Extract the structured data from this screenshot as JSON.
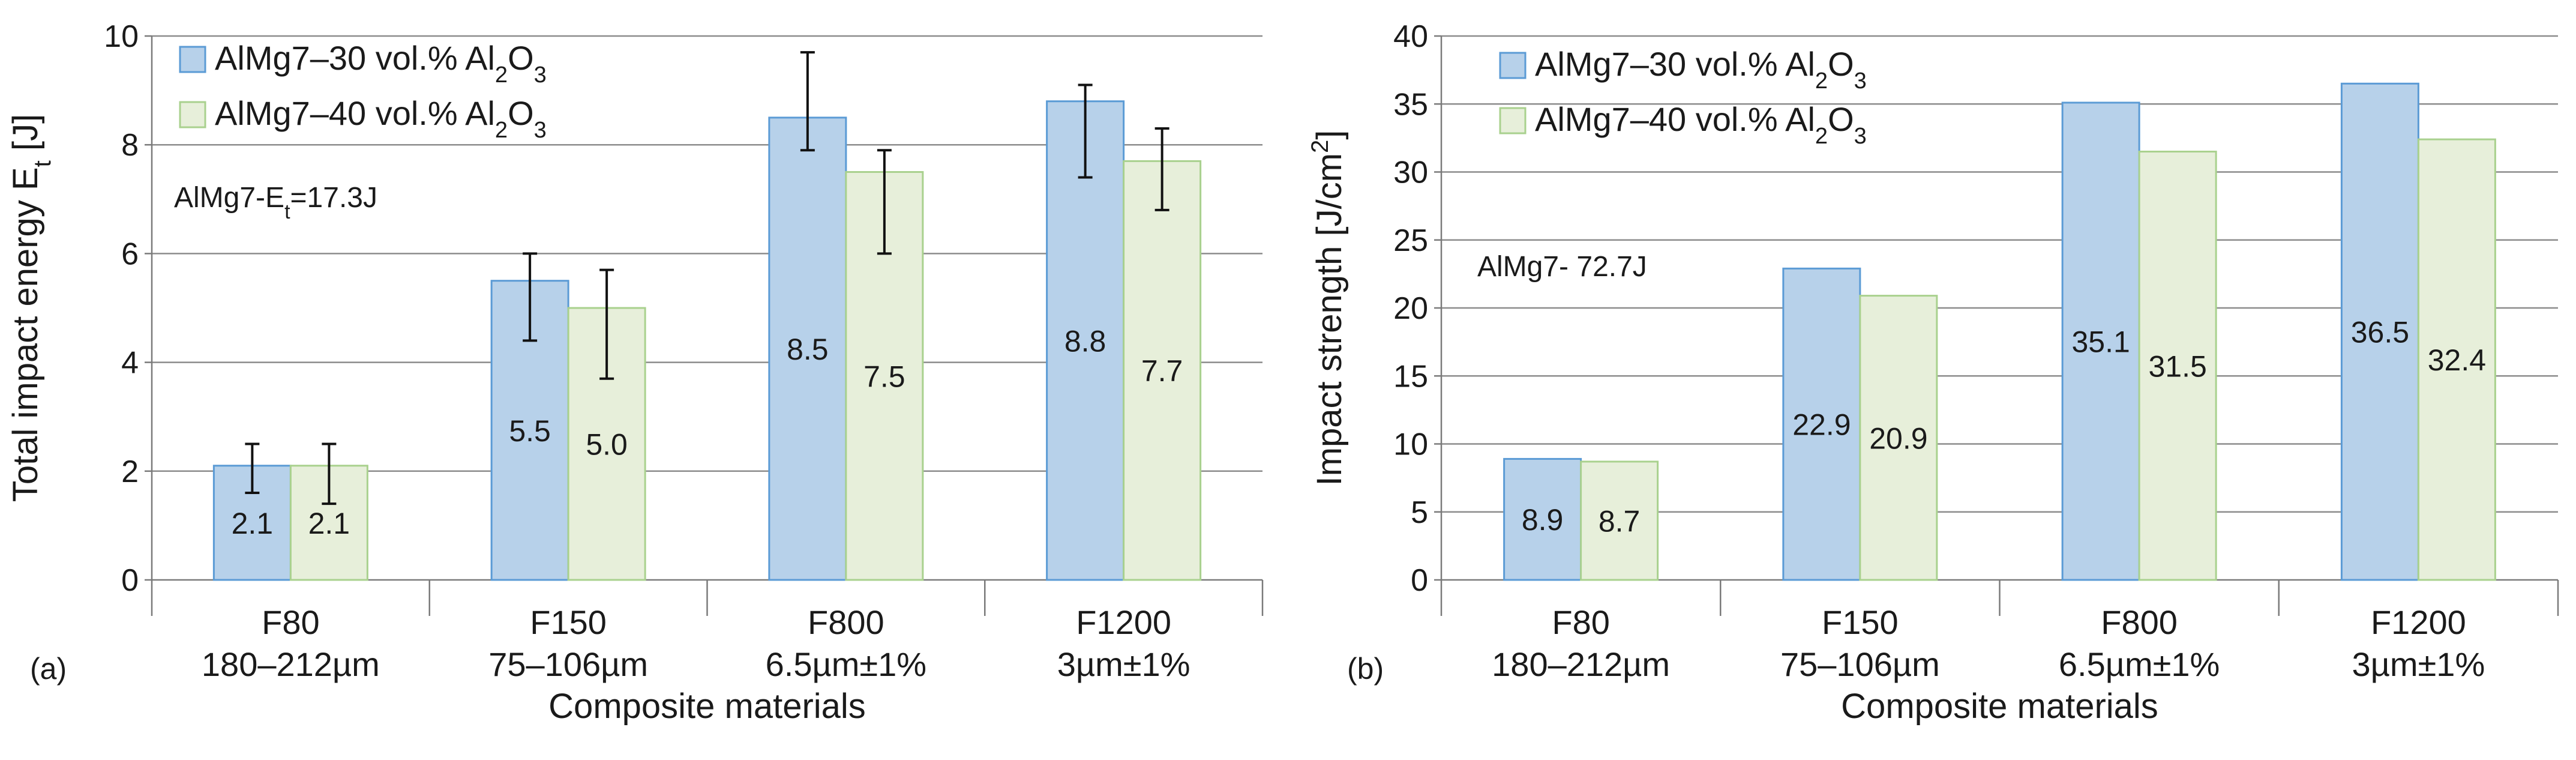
{
  "chart_data": [
    {
      "type": "bar",
      "panel_label": "(a)",
      "title": "",
      "xlabel": "Composite materials",
      "ylabel": "Total impact energy E",
      "ylabel_sub": "t",
      "ylabel_unit": " [J]",
      "ylim": [
        0,
        10
      ],
      "yticks": [
        "0",
        "2",
        "4",
        "6",
        "8",
        "10"
      ],
      "grid": true,
      "legend_position": "top-left",
      "categories": [
        "F80",
        "F150",
        "F800",
        "F1200"
      ],
      "category_sublabels": [
        "180–212µm",
        "75–106µm",
        "6.5µm±1%",
        "3µm±1%"
      ],
      "annotation": {
        "prefix": "AlMg7-E",
        "sub": "t",
        "suffix": "=17.3J"
      },
      "series": [
        {
          "name": "AlMg7–30 vol.% Al2O3",
          "legend_main": "AlMg7–30 vol.% Al",
          "legend_sub1": "2",
          "legend_mid": "O",
          "legend_sub2": "3",
          "color": "#b7d1ea",
          "edge": "#5b9bd5",
          "values": [
            2.1,
            5.5,
            8.5,
            8.8
          ],
          "labels": [
            "2.1",
            "5.5",
            "8.5",
            "8.8"
          ],
          "err_low": [
            1.6,
            4.4,
            7.9,
            7.4
          ],
          "err_high": [
            2.5,
            6.0,
            9.7,
            9.1
          ]
        },
        {
          "name": "AlMg7–40 vol.% Al2O3",
          "legend_main": "AlMg7–40 vol.% Al",
          "legend_sub1": "2",
          "legend_mid": "O",
          "legend_sub2": "3",
          "color": "#e7efda",
          "edge": "#a9d18e",
          "values": [
            2.1,
            5.0,
            7.5,
            7.7
          ],
          "labels": [
            "2.1",
            "5.0",
            "7.5",
            "7.7"
          ],
          "err_low": [
            1.4,
            3.7,
            6.0,
            6.8
          ],
          "err_high": [
            2.5,
            5.7,
            7.9,
            8.3
          ]
        }
      ]
    },
    {
      "type": "bar",
      "panel_label": "(b)",
      "title": "",
      "xlabel": "Composite materials",
      "ylabel": "Impact strength [J/cm",
      "ylabel_sup": "2",
      "ylabel_unit": "]",
      "ylim": [
        0,
        40
      ],
      "yticks": [
        "0",
        "5",
        "10",
        "15",
        "20",
        "25",
        "30",
        "35",
        "40"
      ],
      "grid": true,
      "legend_position": "top-left",
      "categories": [
        "F80",
        "F150",
        "F800",
        "F1200"
      ],
      "category_sublabels": [
        "180–212µm",
        "75–106µm",
        "6.5µm±1%",
        "3µm±1%"
      ],
      "annotation": {
        "prefix": "AlMg7- 72.7J",
        "sub": "",
        "suffix": ""
      },
      "series": [
        {
          "name": "AlMg7–30 vol.% Al2O3",
          "legend_main": "AlMg7–30 vol.% Al",
          "legend_sub1": "2",
          "legend_mid": "O",
          "legend_sub2": "3",
          "color": "#b7d1ea",
          "edge": "#5b9bd5",
          "values": [
            8.9,
            22.9,
            35.1,
            36.5
          ],
          "labels": [
            "8.9",
            "22.9",
            "35.1",
            "36.5"
          ]
        },
        {
          "name": "AlMg7–40 vol.% Al2O3",
          "legend_main": "AlMg7–40 vol.% Al",
          "legend_sub1": "2",
          "legend_mid": "O",
          "legend_sub2": "3",
          "color": "#e7efda",
          "edge": "#a9d18e",
          "values": [
            8.7,
            20.9,
            31.5,
            32.4
          ],
          "labels": [
            "8.7",
            "20.9",
            "31.5",
            "32.4"
          ]
        }
      ]
    }
  ]
}
